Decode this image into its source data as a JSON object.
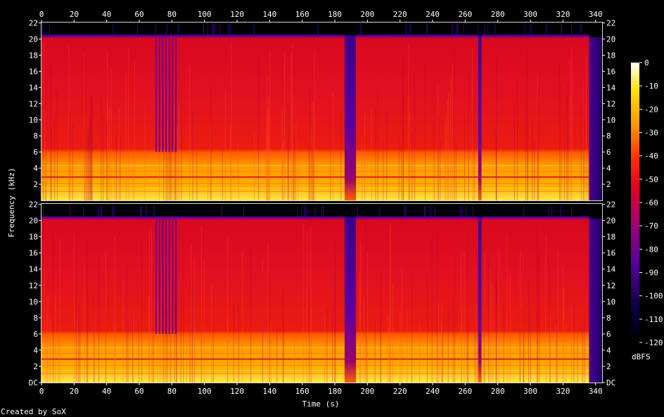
{
  "chart_data": {
    "type": "heatmap",
    "title": "",
    "xlabel": "Time (s)",
    "ylabel": "Frequency (kHz)",
    "x_ticks": [
      "0",
      "20",
      "40",
      "60",
      "80",
      "100",
      "120",
      "140",
      "160",
      "180",
      "200",
      "220",
      "240",
      "260",
      "280",
      "300",
      "320",
      "340"
    ],
    "x_range": [
      0,
      344
    ],
    "channels": [
      {
        "name": "",
        "y_ticks": [
          "22",
          "20",
          "18",
          "16",
          "14",
          "12",
          "10",
          "8",
          "6",
          "4",
          "2"
        ],
        "y_range": [
          0,
          22.05
        ]
      },
      {
        "name": "",
        "y_ticks": [
          "22",
          "20",
          "18",
          "16",
          "14",
          "12",
          "10",
          "8",
          "6",
          "4",
          "2",
          "DC"
        ],
        "y_range": [
          0,
          22.05
        ]
      }
    ],
    "right_y_ticks_top": [
      "22",
      "20",
      "18",
      "16",
      "14",
      "12",
      "10",
      "8",
      "6",
      "4",
      "2"
    ],
    "right_y_ticks_bottom": [
      "22",
      "20",
      "18",
      "16",
      "14",
      "12",
      "10",
      "8",
      "6",
      "4",
      "2",
      "DC"
    ],
    "colorbar": {
      "label": "dBFS",
      "ticks": [
        "0",
        "-10",
        "-20",
        "-30",
        "-40",
        "-50",
        "-60",
        "-70",
        "-80",
        "-90",
        "-100",
        "-110",
        "-120"
      ],
      "range": [
        -120,
        0
      ]
    },
    "features": {
      "content_cutoff_khz": 20.2,
      "bright_band_below_khz": 6,
      "dropouts_s": [
        [
          186,
          193
        ],
        [
          268,
          270
        ]
      ],
      "fade_out_start_s": 336,
      "dark_streaks_s": [
        70,
        72,
        74,
        76,
        78,
        80,
        82
      ]
    },
    "colors": {
      "max": "#ffffff",
      "high": "#ffd400",
      "mid": "#e80018",
      "low": "#60009a",
      "min": "#000000"
    }
  },
  "footer": {
    "credit": "Created by SoX"
  }
}
